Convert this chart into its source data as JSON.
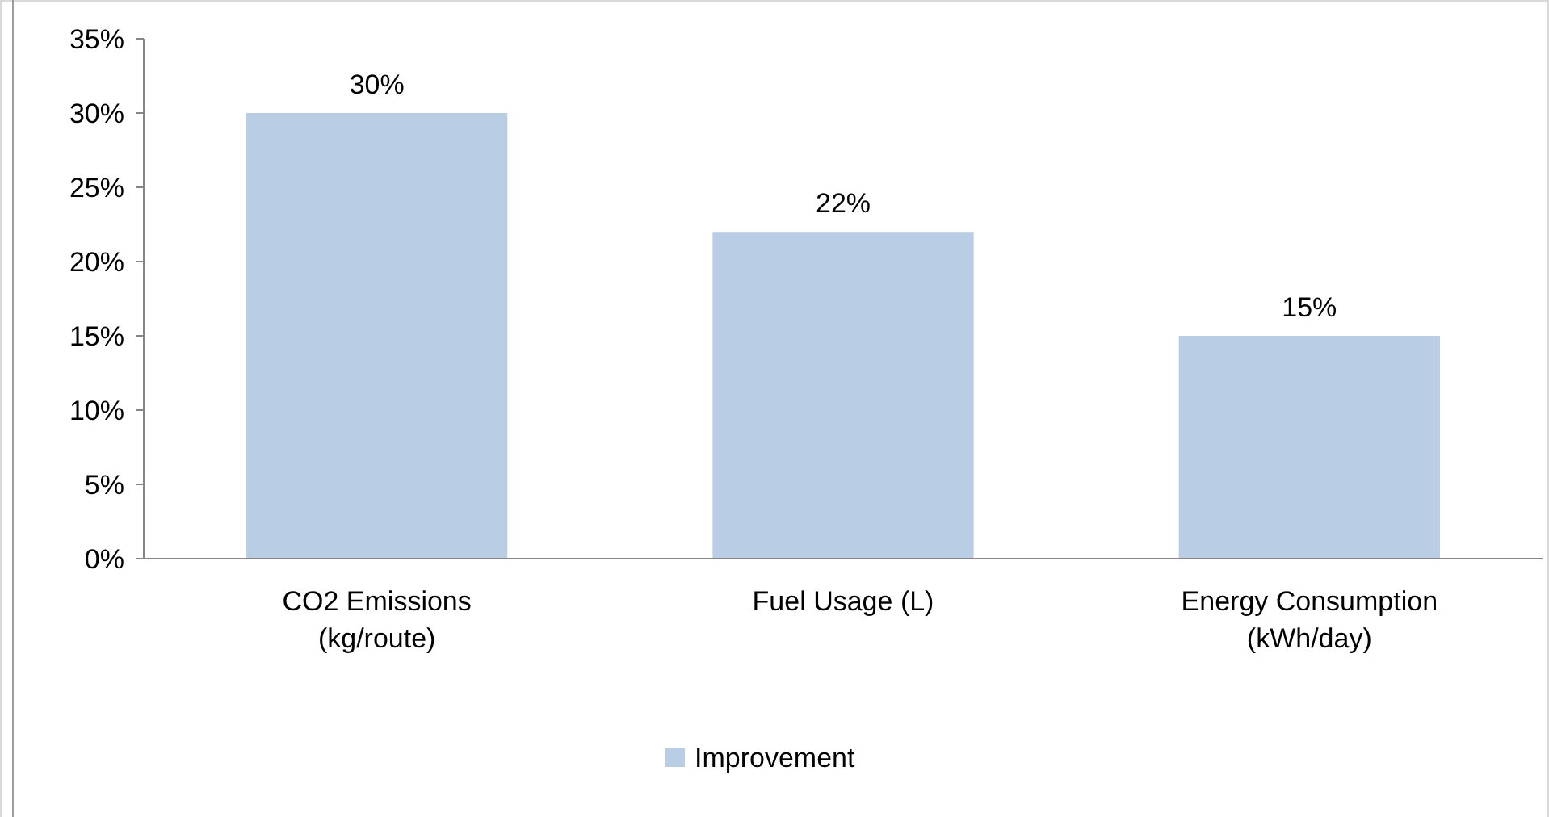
{
  "chart_data": {
    "type": "bar",
    "categories": [
      "CO2 Emissions (kg/route)",
      "Fuel Usage (L)",
      "Energy Consumption (kWh/day)"
    ],
    "series": [
      {
        "name": "Improvement",
        "color": "#b9cde5",
        "values": [
          30,
          22,
          15
        ],
        "value_labels": [
          "30%",
          "22%",
          "15%"
        ]
      }
    ],
    "ylim": [
      0,
      35
    ],
    "yticks": [
      {
        "value": 0,
        "label": "0%"
      },
      {
        "value": 5,
        "label": "5%"
      },
      {
        "value": 10,
        "label": "10%"
      },
      {
        "value": 15,
        "label": "15%"
      },
      {
        "value": 20,
        "label": "20%"
      },
      {
        "value": 25,
        "label": "25%"
      },
      {
        "value": 30,
        "label": "30%"
      },
      {
        "value": 35,
        "label": "35%"
      }
    ],
    "grid": false,
    "legend": "bottom"
  }
}
